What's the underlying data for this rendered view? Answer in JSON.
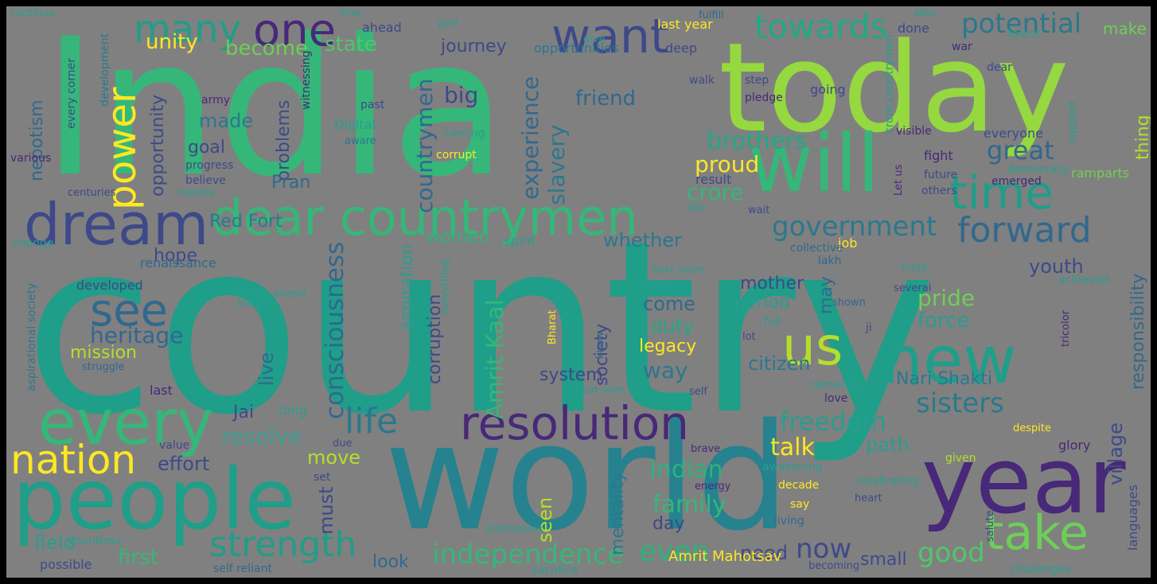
{
  "palette": [
    "#fde725",
    "#b5de2b",
    "#6ece58",
    "#35b779",
    "#1f9e89",
    "#26828e",
    "#31688e",
    "#3e4989",
    "#482878",
    "#440154"
  ],
  "words": [
    {
      "t": "country",
      "c": "#1f9e89"
    },
    {
      "t": "India",
      "c": "#35b779"
    },
    {
      "t": "today",
      "c": "#95d840"
    },
    {
      "t": "world",
      "c": "#26828e"
    },
    {
      "t": "people",
      "c": "#1f9e89"
    },
    {
      "t": "year",
      "c": "#482878"
    },
    {
      "t": "will",
      "c": "#35b779"
    },
    {
      "t": "dream",
      "c": "#3e4989"
    },
    {
      "t": "every",
      "c": "#35b779"
    },
    {
      "t": "new",
      "c": "#1f9e89"
    },
    {
      "t": "dear countrymen",
      "c": "#35b779"
    },
    {
      "t": "time",
      "c": "#1f9e89"
    },
    {
      "t": "resolution",
      "c": "#482878"
    },
    {
      "t": "take",
      "c": "#6ece58"
    },
    {
      "t": "nation",
      "c": "#fde725"
    },
    {
      "t": "want",
      "c": "#3e4989"
    },
    {
      "t": "one",
      "c": "#482878"
    },
    {
      "t": "many",
      "c": "#1f9e89"
    },
    {
      "t": "us",
      "c": "#b5de2b"
    },
    {
      "t": "see",
      "c": "#31688e"
    },
    {
      "t": "power",
      "c": "#fde725"
    },
    {
      "t": "forward",
      "c": "#31688e"
    },
    {
      "t": "life",
      "c": "#2a788e"
    },
    {
      "t": "strength",
      "c": "#1f9e89"
    },
    {
      "t": "towards",
      "c": "#22a884"
    },
    {
      "t": "potential",
      "c": "#2a788e"
    },
    {
      "t": "government",
      "c": "#2a788e"
    },
    {
      "t": "consciousness",
      "c": "#31688e"
    },
    {
      "t": "countrymen",
      "c": "#31688e"
    },
    {
      "t": "independence",
      "c": "#35b779"
    },
    {
      "t": "Amrit Kaal",
      "c": "#35b779"
    },
    {
      "t": "freedom",
      "c": "#2a9d8f"
    },
    {
      "t": "sisters",
      "c": "#2a788e"
    },
    {
      "t": "even",
      "c": "#2db27d"
    },
    {
      "t": "now",
      "c": "#3e4989"
    },
    {
      "t": "good",
      "c": "#52c569"
    },
    {
      "t": "great",
      "c": "#31688e"
    },
    {
      "t": "family",
      "c": "#35b779"
    },
    {
      "t": "brothers",
      "c": "#22a884"
    },
    {
      "t": "pride",
      "c": "#6ece58"
    },
    {
      "t": "heritage",
      "c": "#31688e"
    },
    {
      "t": "Indian",
      "c": "#2db27d"
    },
    {
      "t": "experience",
      "c": "#31688e"
    },
    {
      "t": "slavery",
      "c": "#2a788e"
    },
    {
      "t": "big",
      "c": "#3e4989"
    },
    {
      "t": "proud",
      "c": "#fde725"
    },
    {
      "t": "crore",
      "c": "#35b779"
    },
    {
      "t": "friend",
      "c": "#31688e"
    },
    {
      "t": "resolve",
      "c": "#3e9c8f"
    },
    {
      "t": "talk",
      "c": "#fde725"
    },
    {
      "t": "unity",
      "c": "#fde725"
    },
    {
      "t": "become",
      "c": "#6ece58"
    },
    {
      "t": "state",
      "c": "#52c569"
    },
    {
      "t": "journey",
      "c": "#3e4989"
    },
    {
      "t": "village",
      "c": "#3e4989"
    },
    {
      "t": "responsibility",
      "c": "#31688e"
    },
    {
      "t": "nepotism",
      "c": "#31688e"
    },
    {
      "t": "opportunity",
      "c": "#3e4989"
    },
    {
      "t": "made",
      "c": "#2a788e"
    },
    {
      "t": "goal",
      "c": "#3e4989"
    },
    {
      "t": "problems",
      "c": "#3e4989"
    },
    {
      "t": "Pran",
      "c": "#31688e"
    },
    {
      "t": "Red Fort",
      "c": "#2a788e"
    },
    {
      "t": "hope",
      "c": "#3e4989"
    },
    {
      "t": "women",
      "c": "#2db27d"
    },
    {
      "t": "whether",
      "c": "#2a788e"
    },
    {
      "t": "youth",
      "c": "#3e4989"
    },
    {
      "t": "mother",
      "c": "#3e4989"
    },
    {
      "t": "may",
      "c": "#31688e"
    },
    {
      "t": "period",
      "c": "#2a9d8f"
    },
    {
      "t": "force",
      "c": "#2a9d8f"
    },
    {
      "t": "come",
      "c": "#31688e"
    },
    {
      "t": "duty",
      "c": "#22a884"
    },
    {
      "t": "legacy",
      "c": "#fde725"
    },
    {
      "t": "citizen",
      "c": "#2a788e"
    },
    {
      "t": "way",
      "c": "#2a788e"
    },
    {
      "t": "society",
      "c": "#3e4989"
    },
    {
      "t": "system",
      "c": "#3e4989"
    },
    {
      "t": "Nari Shakti",
      "c": "#2a788e"
    },
    {
      "t": "thing",
      "c": "#b5de2b"
    },
    {
      "t": "corruption",
      "c": "#3e4989"
    },
    {
      "t": "aspiration",
      "c": "#2a9d8f"
    },
    {
      "t": "live",
      "c": "#31688e"
    },
    {
      "t": "mission",
      "c": "#b5de2b"
    },
    {
      "t": "Jai",
      "c": "#3e4989"
    },
    {
      "t": "effort",
      "c": "#3e4989"
    },
    {
      "t": "move",
      "c": "#b5de2b"
    },
    {
      "t": "must",
      "c": "#3e4989"
    },
    {
      "t": "path",
      "c": "#2a9d8f"
    },
    {
      "t": "mentality",
      "c": "#2a788e"
    },
    {
      "t": "day",
      "c": "#3e4989"
    },
    {
      "t": "seen",
      "c": "#b5de2b"
    },
    {
      "t": "need",
      "c": "#3e4989"
    },
    {
      "t": "small",
      "c": "#3e4989"
    },
    {
      "t": "field",
      "c": "#2a9d8f"
    },
    {
      "t": "first",
      "c": "#35b779"
    },
    {
      "t": "look",
      "c": "#31688e"
    },
    {
      "t": "Amrit Mahotsav",
      "c": "#fde725"
    },
    {
      "t": "developed",
      "c": "#3e4989"
    },
    {
      "t": "renaissance",
      "c": "#31688e"
    },
    {
      "t": "progress",
      "c": "#3e4989"
    },
    {
      "t": "believe",
      "c": "#3e4989"
    },
    {
      "t": "army",
      "c": "#482878"
    },
    {
      "t": "Digital",
      "c": "#2a9d8f"
    },
    {
      "t": "aware",
      "c": "#2a788e"
    },
    {
      "t": "corrupt",
      "c": "#fde725"
    },
    {
      "t": "coming",
      "c": "#2a9d8f"
    },
    {
      "t": "past",
      "c": "#3e4989"
    },
    {
      "t": "witnessing",
      "c": "#482878"
    },
    {
      "t": "every corner",
      "c": "#3e4989"
    },
    {
      "t": "development",
      "c": "#2a788e"
    },
    {
      "t": "various",
      "c": "#482878"
    },
    {
      "t": "centuries",
      "c": "#3e4989"
    },
    {
      "t": "mantra",
      "c": "#2a9d8f"
    },
    {
      "t": "change",
      "c": "#2a9d8f"
    },
    {
      "t": "spirit",
      "c": "#2a9d8f"
    },
    {
      "t": "aspirational society",
      "c": "#2a788e"
    },
    {
      "t": "struggle",
      "c": "#31688e"
    },
    {
      "t": "last",
      "c": "#482878"
    },
    {
      "t": "long",
      "c": "#2a9d8f"
    },
    {
      "t": "countless",
      "c": "#2a9d8f"
    },
    {
      "t": "possible",
      "c": "#3e4989"
    },
    {
      "t": "self reliant",
      "c": "#31688e"
    },
    {
      "t": "sacrifice",
      "c": "#2a9d8f"
    },
    {
      "t": "continue",
      "c": "#2a9d8f"
    },
    {
      "t": "free",
      "c": "#2a9d8f"
    },
    {
      "t": "ahead",
      "c": "#3e4989"
    },
    {
      "t": "part",
      "c": "#2a9d8f"
    },
    {
      "t": "opportunities",
      "c": "#2a788e"
    },
    {
      "t": "give",
      "c": "#2a9d8f"
    },
    {
      "t": "deep",
      "c": "#3e4989"
    },
    {
      "t": "walk",
      "c": "#3e4989"
    },
    {
      "t": "last year",
      "c": "#fde725"
    },
    {
      "t": "fulfill",
      "c": "#31688e"
    },
    {
      "t": "able",
      "c": "#2a9d8f"
    },
    {
      "t": "done",
      "c": "#3e4989"
    },
    {
      "t": "talent",
      "c": "#2a9d8f"
    },
    {
      "t": "make",
      "c": "#6ece58"
    },
    {
      "t": "war",
      "c": "#482878"
    },
    {
      "t": "dear",
      "c": "#3e4989"
    },
    {
      "t": "step",
      "c": "#3e4989"
    },
    {
      "t": "pledge",
      "c": "#482878"
    },
    {
      "t": "going",
      "c": "#3e4989"
    },
    {
      "t": "crore countrymen",
      "c": "#2a9d8f"
    },
    {
      "t": "visible",
      "c": "#482878"
    },
    {
      "t": "everyone",
      "c": "#3e4989"
    },
    {
      "t": "support",
      "c": "#2a9d8f"
    },
    {
      "t": "fight",
      "c": "#482878"
    },
    {
      "t": "future",
      "c": "#3e4989"
    },
    {
      "t": "democracy",
      "c": "#2a9d8f"
    },
    {
      "t": "ramparts",
      "c": "#6ece58"
    },
    {
      "t": "emerged",
      "c": "#482878"
    },
    {
      "t": "others",
      "c": "#3e4989"
    },
    {
      "t": "result",
      "c": "#3e4989"
    },
    {
      "t": "Let us",
      "c": "#482878"
    },
    {
      "t": "two",
      "c": "#2a9d8f"
    },
    {
      "t": "wait",
      "c": "#3e4989"
    },
    {
      "t": "job",
      "c": "#fde725"
    },
    {
      "t": "collective",
      "c": "#31688e"
    },
    {
      "t": "lakh",
      "c": "#31688e"
    },
    {
      "t": "huge",
      "c": "#2a9d8f"
    },
    {
      "t": "next years",
      "c": "#2a9d8f"
    },
    {
      "t": "rising",
      "c": "#2a9d8f"
    },
    {
      "t": "everything",
      "c": "#2a9d8f"
    },
    {
      "t": "moving ahead",
      "c": "#2a9d8f"
    },
    {
      "t": "asset",
      "c": "#2a9d8f"
    },
    {
      "t": "Bharat",
      "c": "#fde725"
    },
    {
      "t": "know",
      "c": "#31688e"
    },
    {
      "t": "great men",
      "c": "#2a9d8f"
    },
    {
      "t": "self",
      "c": "#3e4989"
    },
    {
      "t": "full",
      "c": "#2a9d8f"
    },
    {
      "t": "lot",
      "c": "#3e4989"
    },
    {
      "t": "shown",
      "c": "#31688e"
    },
    {
      "t": "ji",
      "c": "#3e4989"
    },
    {
      "t": "tricolor",
      "c": "#482878"
    },
    {
      "t": "achieved",
      "c": "#2a9d8f"
    },
    {
      "t": "several",
      "c": "#3e4989"
    },
    {
      "t": "remember",
      "c": "#2a9d8f"
    },
    {
      "t": "love",
      "c": "#482878"
    },
    {
      "t": "due",
      "c": "#3e4989"
    },
    {
      "t": "brave",
      "c": "#482878"
    },
    {
      "t": "awakening",
      "c": "#2a9d8f"
    },
    {
      "t": "despite",
      "c": "#fde725"
    },
    {
      "t": "glory",
      "c": "#482878"
    },
    {
      "t": "given",
      "c": "#b5de2b"
    },
    {
      "t": "value",
      "c": "#3e4989"
    },
    {
      "t": "set",
      "c": "#3e4989"
    },
    {
      "t": "decade",
      "c": "#fde725"
    },
    {
      "t": "energy",
      "c": "#482878"
    },
    {
      "t": "celebrating",
      "c": "#2a9d8f"
    },
    {
      "t": "say",
      "c": "#fde725"
    },
    {
      "t": "heart",
      "c": "#3e4989"
    },
    {
      "t": "living",
      "c": "#31688e"
    },
    {
      "t": "becoming",
      "c": "#3e4989"
    },
    {
      "t": "salute",
      "c": "#3e4989"
    },
    {
      "t": "languages",
      "c": "#3e4989"
    },
    {
      "t": "challenges",
      "c": "#2a9d8f"
    },
    {
      "t": "institutions",
      "c": "#2a9d8f"
    },
    {
      "t": "mind",
      "c": "#2a9d8f"
    }
  ]
}
